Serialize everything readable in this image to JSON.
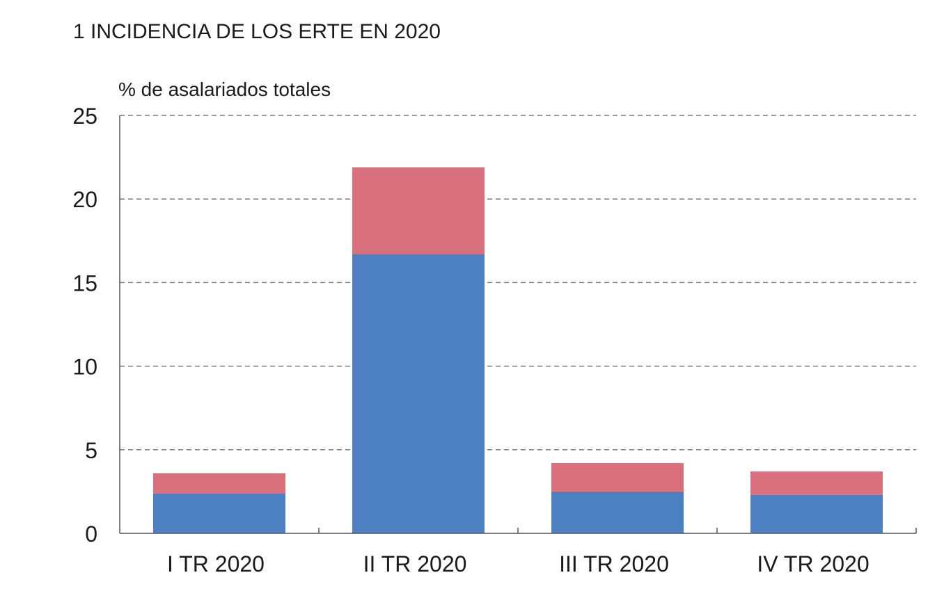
{
  "chart_data": {
    "type": "bar",
    "stacked": true,
    "title": "1  INCIDENCIA DE LOS ERTE EN 2020",
    "ylabel": "% de asalariados totales",
    "xlabel": "",
    "categories": [
      "I TR 2020",
      "II TR 2020",
      "III TR 2020",
      "IV TR 2020"
    ],
    "series": [
      {
        "color": "#4C80C0",
        "values": [
          2.4,
          16.7,
          2.5,
          2.3
        ]
      },
      {
        "color": "#D8707E",
        "values": [
          1.2,
          5.2,
          1.7,
          1.4
        ]
      }
    ],
    "ylim": [
      0,
      25
    ],
    "yticks": [
      0,
      5,
      10,
      15,
      20,
      25
    ],
    "grid": true,
    "legend": "none"
  }
}
